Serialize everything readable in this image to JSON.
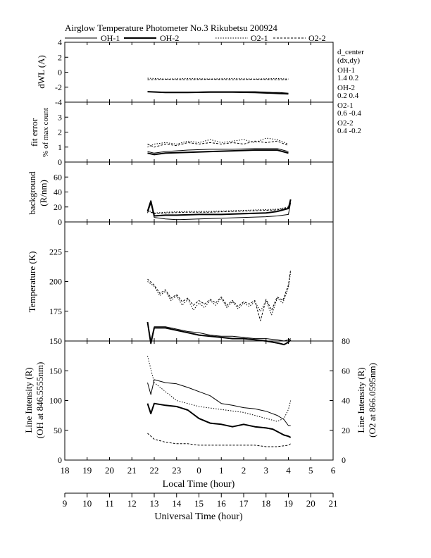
{
  "header": {
    "title": "Airglow Temperature Photometer No.3  Rikubetsu    200924",
    "legend": [
      {
        "label": "OH-1",
        "style": "thin-solid"
      },
      {
        "label": "OH-2",
        "style": "thick-solid"
      },
      {
        "label": "O2-1",
        "style": "dotted"
      },
      {
        "label": "O2-2",
        "style": "dashed"
      }
    ]
  },
  "side_annotations": {
    "title": "d_center",
    "subtitle": "(dx,dy)",
    "items": [
      {
        "name": "OH-1",
        "value": "1.4   0.2"
      },
      {
        "name": "OH-2",
        "value": "0.2   0.4"
      },
      {
        "name": "O2-1",
        "value": "0.6   -0.4"
      },
      {
        "name": "O2-2",
        "value": "0.4   -0.2"
      }
    ]
  },
  "x_axes": {
    "local": {
      "label": "Local Time (hour)",
      "ticks": [
        "18",
        "19",
        "20",
        "21",
        "22",
        "23",
        "0",
        "1",
        "2",
        "3",
        "4",
        "5",
        "6"
      ]
    },
    "universal": {
      "label": "Universal Time (hour)",
      "ticks": [
        "9",
        "10",
        "11",
        "12",
        "13",
        "14",
        "15",
        "16",
        "17",
        "18",
        "19",
        "20",
        "21"
      ]
    }
  },
  "colors": {
    "ink": "#000000",
    "background": "#ffffff"
  },
  "chart_data": [
    {
      "type": "line",
      "ylabel": "dWL (A)",
      "ylim": [
        -4,
        4
      ],
      "yticks": [
        "4",
        "2",
        "0",
        "-2",
        "-4"
      ],
      "series": [
        {
          "name": "OH-1",
          "x": [
            12.7,
            13.5,
            14.5,
            15.5,
            16.5,
            17.5,
            18.3,
            18.6,
            19.0
          ],
          "y": [
            -2.6,
            -2.65,
            -2.65,
            -2.6,
            -2.6,
            -2.6,
            -2.7,
            -2.7,
            -2.8
          ]
        },
        {
          "name": "OH-2",
          "x": [
            12.7,
            13.5,
            14.5,
            15.5,
            16.5,
            17.5,
            18.3,
            18.6,
            19.0
          ],
          "y": [
            -2.6,
            -2.7,
            -2.7,
            -2.65,
            -2.65,
            -2.7,
            -2.8,
            -2.85,
            -2.9
          ]
        },
        {
          "name": "O2-1",
          "x": [
            12.7,
            13.5,
            14.5,
            15.5,
            16.5,
            17.5,
            18.5,
            19.0
          ],
          "y": [
            -0.8,
            -0.9,
            -0.85,
            -0.9,
            -0.85,
            -0.9,
            -0.85,
            -0.9
          ]
        },
        {
          "name": "O2-2",
          "x": [
            12.7,
            13.5,
            14.5,
            15.5,
            16.5,
            17.5,
            18.5,
            19.0
          ],
          "y": [
            -1.0,
            -0.95,
            -1.0,
            -0.95,
            -1.0,
            -0.95,
            -1.0,
            -1.0
          ]
        }
      ]
    },
    {
      "type": "line",
      "ylabel": "fit error",
      "ylabel2": "% of max count",
      "ylim": [
        0,
        4
      ],
      "yticks": [
        "3",
        "2",
        "1",
        "0"
      ],
      "series": [
        {
          "name": "OH-1",
          "x": [
            12.7,
            13.0,
            13.5,
            14.5,
            15.5,
            16.5,
            17.5,
            18.5,
            19.0
          ],
          "y": [
            0.7,
            0.6,
            0.7,
            0.8,
            0.85,
            0.85,
            0.9,
            0.9,
            0.7
          ]
        },
        {
          "name": "OH-2",
          "x": [
            12.7,
            13.0,
            13.5,
            14.5,
            15.5,
            16.5,
            17.5,
            18.5,
            19.0
          ],
          "y": [
            0.6,
            0.5,
            0.6,
            0.65,
            0.7,
            0.75,
            0.8,
            0.8,
            0.6
          ]
        },
        {
          "name": "O2-1",
          "x": [
            12.7,
            13.0,
            13.5,
            14.0,
            14.5,
            15.0,
            15.5,
            16.0,
            16.5,
            17.0,
            17.5,
            18.0,
            18.5,
            19.0
          ],
          "y": [
            1.0,
            1.2,
            1.3,
            1.2,
            1.4,
            1.3,
            1.5,
            1.3,
            1.4,
            1.5,
            1.3,
            1.6,
            1.5,
            1.2
          ]
        },
        {
          "name": "O2-2",
          "x": [
            12.7,
            13.0,
            13.5,
            14.0,
            14.5,
            15.0,
            15.5,
            16.0,
            16.5,
            17.0,
            17.5,
            18.0,
            18.5,
            19.0
          ],
          "y": [
            1.2,
            1.0,
            1.2,
            1.1,
            1.3,
            1.2,
            1.3,
            1.2,
            1.3,
            1.2,
            1.4,
            1.3,
            1.4,
            1.1
          ]
        }
      ]
    },
    {
      "type": "line",
      "ylabel": "background",
      "ylabel2": "(R/nm)",
      "ylim": [
        0,
        80
      ],
      "yticks": [
        "60",
        "40",
        "20",
        "0"
      ],
      "series": [
        {
          "name": "OH-1",
          "x": [
            12.7,
            12.85,
            13.0,
            13.5,
            14.0,
            15.0,
            16.0,
            17.0,
            18.0,
            18.5,
            19.0,
            19.1
          ],
          "y": [
            12,
            25,
            6,
            4,
            3,
            4,
            5,
            6,
            7,
            8,
            10,
            26
          ]
        },
        {
          "name": "OH-2",
          "x": [
            12.7,
            12.85,
            13.0,
            13.5,
            14.0,
            15.0,
            16.0,
            17.0,
            18.0,
            18.5,
            19.0,
            19.1
          ],
          "y": [
            14,
            28,
            8,
            9,
            9,
            10,
            10,
            11,
            12,
            14,
            18,
            30
          ]
        },
        {
          "name": "O2-1",
          "x": [
            12.7,
            13.0,
            13.5,
            14.5,
            15.5,
            16.5,
            17.5,
            18.5,
            19.0,
            19.1
          ],
          "y": [
            16,
            12,
            13,
            14,
            14,
            15,
            16,
            17,
            20,
            28
          ]
        },
        {
          "name": "O2-2",
          "x": [
            12.7,
            13.0,
            13.5,
            14.5,
            15.5,
            16.5,
            17.5,
            18.5,
            19.0,
            19.1
          ],
          "y": [
            15,
            11,
            12,
            13,
            13,
            14,
            15,
            16,
            19,
            27
          ]
        }
      ]
    },
    {
      "type": "line",
      "ylabel": "Temperature (K)",
      "ylim": [
        150,
        250
      ],
      "yticks": [
        "225",
        "200",
        "175",
        "150"
      ],
      "series": [
        {
          "name": "OH-1",
          "x": [
            12.7,
            12.85,
            13.0,
            13.5,
            14.0,
            14.5,
            15.0,
            15.5,
            16.0,
            16.5,
            17.0,
            17.5,
            18.0,
            18.5,
            18.8,
            19.0,
            19.1
          ],
          "y": [
            165,
            150,
            162,
            162,
            160,
            158,
            157,
            155,
            154,
            154,
            153,
            152,
            152,
            151,
            150,
            151,
            152
          ]
        },
        {
          "name": "OH-2",
          "x": [
            12.7,
            12.85,
            13.0,
            13.5,
            14.0,
            14.5,
            15.0,
            15.5,
            16.0,
            16.5,
            17.0,
            17.5,
            18.0,
            18.3,
            18.6,
            18.8,
            19.0,
            19.1
          ],
          "y": [
            166,
            148,
            161,
            161,
            159,
            157,
            155,
            154,
            153,
            152,
            152,
            151,
            150,
            149,
            148,
            147,
            149,
            151
          ]
        },
        {
          "name": "O2-1",
          "x": [
            12.7,
            13.0,
            13.25,
            13.5,
            13.75,
            14.0,
            14.25,
            14.5,
            14.75,
            15.0,
            15.25,
            15.5,
            15.75,
            16.0,
            16.25,
            16.5,
            16.75,
            17.0,
            17.25,
            17.5,
            17.75,
            18.0,
            18.25,
            18.5,
            18.75,
            19.0,
            19.1
          ],
          "y": [
            200,
            196,
            188,
            192,
            184,
            188,
            180,
            185,
            176,
            182,
            178,
            184,
            180,
            186,
            178,
            183,
            177,
            182,
            179,
            183,
            175,
            184,
            172,
            186,
            182,
            195,
            208
          ]
        },
        {
          "name": "O2-2",
          "x": [
            12.7,
            13.0,
            13.25,
            13.5,
            13.75,
            14.0,
            14.25,
            14.5,
            14.75,
            15.0,
            15.25,
            15.5,
            15.75,
            16.0,
            16.25,
            16.5,
            16.75,
            17.0,
            17.25,
            17.5,
            17.75,
            18.0,
            18.25,
            18.5,
            18.75,
            19.0,
            19.1
          ],
          "y": [
            202,
            197,
            190,
            193,
            186,
            189,
            183,
            186,
            180,
            184,
            181,
            185,
            182,
            187,
            180,
            184,
            179,
            183,
            181,
            184,
            167,
            185,
            176,
            187,
            184,
            197,
            210
          ]
        }
      ]
    },
    {
      "type": "line",
      "ylabel": "Line Intensity (R)",
      "ylabel2": "(OH at 846.5555nm)",
      "ylabel_right": "Line Intensity (R)",
      "ylabel_right2": "(O2 at 866.0595nm)",
      "ylim": [
        0,
        200
      ],
      "ylim_right": [
        0,
        80
      ],
      "yticks": [
        "150",
        "100",
        "50",
        "0"
      ],
      "yticks_right": [
        "80",
        "60",
        "40",
        "20",
        "0"
      ],
      "series": [
        {
          "name": "OH-1",
          "axis": "left",
          "x": [
            12.7,
            12.85,
            13.0,
            13.5,
            14.0,
            14.5,
            15.0,
            15.5,
            16.0,
            16.5,
            17.0,
            17.5,
            18.0,
            18.5,
            18.8,
            19.0,
            19.1
          ],
          "y": [
            130,
            110,
            135,
            130,
            128,
            122,
            115,
            108,
            95,
            92,
            88,
            86,
            82,
            75,
            68,
            58,
            58
          ]
        },
        {
          "name": "OH-2",
          "axis": "left",
          "x": [
            12.7,
            12.85,
            13.0,
            13.5,
            14.0,
            14.5,
            15.0,
            15.5,
            16.0,
            16.5,
            17.0,
            17.5,
            18.0,
            18.3,
            18.6,
            18.8,
            19.0,
            19.1
          ],
          "y": [
            95,
            78,
            95,
            92,
            90,
            84,
            70,
            62,
            60,
            56,
            60,
            56,
            54,
            52,
            46,
            42,
            40,
            38
          ]
        },
        {
          "name": "O2-1",
          "axis": "right",
          "x": [
            12.7,
            13.0,
            13.5,
            14.0,
            14.5,
            15.0,
            15.5,
            16.0,
            16.5,
            17.0,
            17.5,
            18.0,
            18.5,
            18.8,
            19.0,
            19.1
          ],
          "y": [
            70,
            52,
            46,
            40,
            38,
            36,
            35,
            34,
            33,
            32,
            30,
            28,
            26,
            28,
            34,
            40
          ]
        },
        {
          "name": "O2-2",
          "axis": "right",
          "x": [
            12.7,
            13.0,
            13.5,
            14.0,
            14.5,
            15.0,
            15.5,
            16.0,
            16.5,
            17.0,
            17.5,
            18.0,
            18.5,
            19.0,
            19.1
          ],
          "y": [
            18,
            14,
            12,
            11,
            11,
            10,
            10,
            10,
            10,
            10,
            10,
            9,
            9,
            10,
            11
          ]
        }
      ]
    }
  ]
}
